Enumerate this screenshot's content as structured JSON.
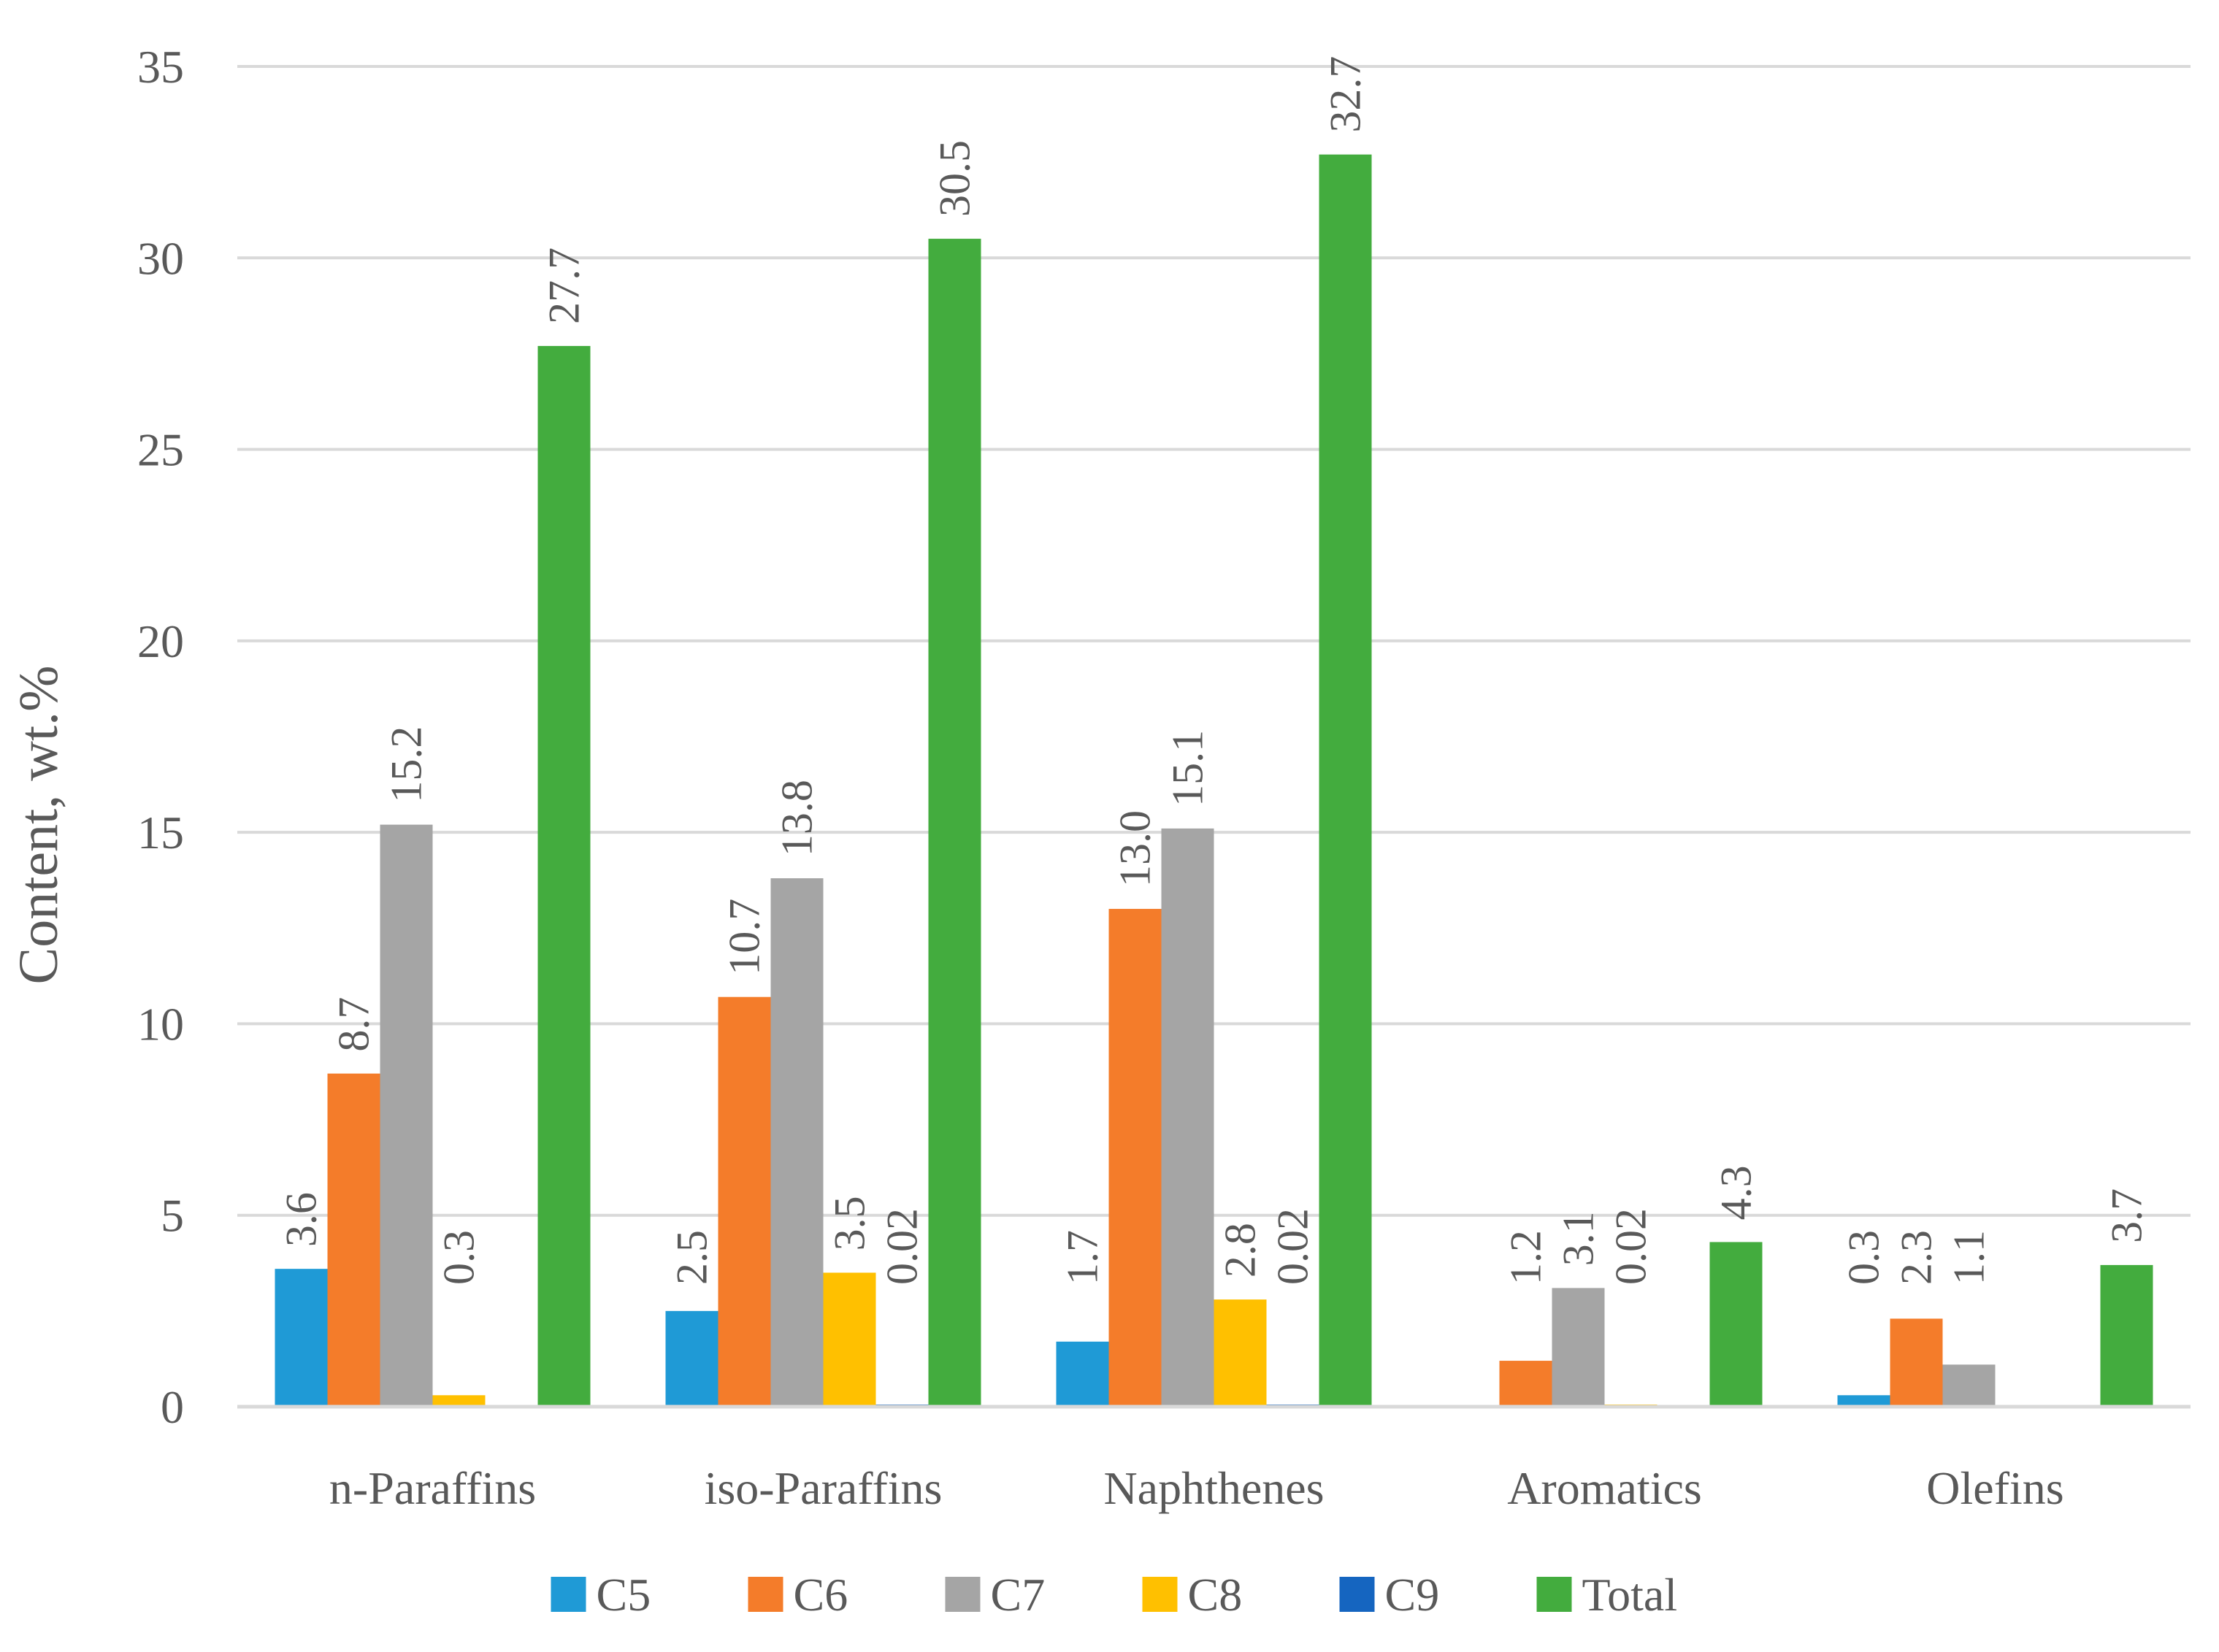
{
  "chart_data": {
    "type": "bar",
    "title": "",
    "xlabel": "",
    "ylabel": "Content, wt.%",
    "ylim": [
      0,
      35
    ],
    "yticks": [
      0,
      5,
      10,
      15,
      20,
      25,
      30,
      35
    ],
    "grid": true,
    "legend_position": "bottom",
    "categories": [
      "n-Paraffins",
      "iso-Paraffins",
      "Naphthenes",
      "Aromatics",
      "Olefins"
    ],
    "series": [
      {
        "name": "C5",
        "color": "#1F9AD6",
        "values": [
          3.6,
          2.5,
          1.7,
          null,
          0.3
        ],
        "labels": [
          "3.6",
          "2.5",
          "1.7",
          null,
          "0.3"
        ]
      },
      {
        "name": "C6",
        "color": "#F47C2A",
        "values": [
          8.7,
          10.7,
          13.0,
          1.2,
          2.3
        ],
        "labels": [
          "8.7",
          "10.7",
          "13.0",
          "1.2",
          "2.3"
        ]
      },
      {
        "name": "C7",
        "color": "#A5A5A5",
        "values": [
          15.2,
          13.8,
          15.1,
          3.1,
          1.1
        ],
        "labels": [
          "15.2",
          "13.8",
          "15.1",
          "3.1",
          "1.1"
        ]
      },
      {
        "name": "C8",
        "color": "#FFC000",
        "values": [
          0.3,
          3.5,
          2.8,
          0.02,
          null
        ],
        "labels": [
          "0.3",
          "3.5",
          "2.8",
          "0.02",
          null
        ]
      },
      {
        "name": "C9",
        "color": "#1565C0",
        "values": [
          null,
          0.02,
          0.02,
          null,
          null
        ],
        "labels": [
          null,
          "0.02",
          "0.02",
          null,
          null
        ]
      },
      {
        "name": "Total",
        "color": "#43AC3E",
        "values": [
          27.7,
          30.5,
          32.7,
          4.3,
          3.7
        ],
        "labels": [
          "27.7",
          "30.5",
          "32.7",
          "4.3",
          "3.7"
        ]
      }
    ]
  }
}
